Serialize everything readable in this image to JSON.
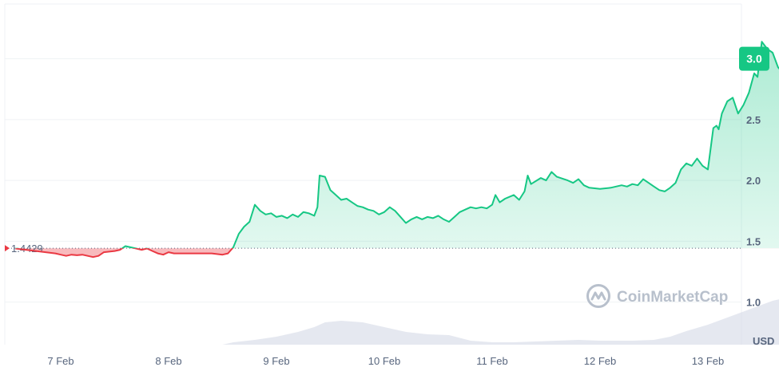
{
  "chart_data": {
    "type": "area",
    "title": "",
    "xlabel": "",
    "ylabel": "USD",
    "ylim": [
      0.65,
      3.45
    ],
    "baseline": {
      "value": 1.4429,
      "label": "1.4429"
    },
    "last_price": {
      "value": 3.0,
      "label": "3.0"
    },
    "y_ticks": [
      {
        "value": 1.0,
        "label": "1.0"
      },
      {
        "value": 1.5,
        "label": "1.5"
      },
      {
        "value": 2.0,
        "label": "2.0"
      },
      {
        "value": 2.5,
        "label": "2.5"
      },
      {
        "value": 3.0,
        "label": "3.0"
      }
    ],
    "x_ticks": [
      {
        "day": 0,
        "label": "7 Feb"
      },
      {
        "day": 1,
        "label": "8 Feb"
      },
      {
        "day": 2,
        "label": "9 Feb"
      },
      {
        "day": 3,
        "label": "10 Feb"
      },
      {
        "day": 4,
        "label": "11 Feb"
      },
      {
        "day": 5,
        "label": "12 Feb"
      },
      {
        "day": 6,
        "label": "13 Feb"
      }
    ],
    "series": [
      {
        "values": [
          [
            -0.42,
            1.44
          ],
          [
            -0.05,
            1.4
          ],
          [
            0.0,
            1.39
          ],
          [
            0.05,
            1.38
          ],
          [
            0.1,
            1.39
          ],
          [
            0.15,
            1.385
          ],
          [
            0.2,
            1.39
          ],
          [
            0.3,
            1.37
          ],
          [
            0.35,
            1.38
          ],
          [
            0.4,
            1.41
          ],
          [
            0.5,
            1.42
          ],
          [
            0.55,
            1.43
          ],
          [
            0.6,
            1.46
          ],
          [
            0.65,
            1.45
          ],
          [
            0.7,
            1.44
          ],
          [
            0.75,
            1.43
          ],
          [
            0.8,
            1.44
          ],
          [
            0.85,
            1.42
          ],
          [
            0.9,
            1.4
          ],
          [
            0.95,
            1.39
          ],
          [
            1.0,
            1.41
          ],
          [
            1.05,
            1.4
          ],
          [
            1.2,
            1.4
          ],
          [
            1.4,
            1.4
          ],
          [
            1.5,
            1.39
          ],
          [
            1.55,
            1.4
          ],
          [
            1.6,
            1.45
          ],
          [
            1.65,
            1.56
          ],
          [
            1.7,
            1.62
          ],
          [
            1.75,
            1.66
          ],
          [
            1.8,
            1.8
          ],
          [
            1.85,
            1.75
          ],
          [
            1.9,
            1.72
          ],
          [
            1.95,
            1.73
          ],
          [
            2.0,
            1.7
          ],
          [
            2.05,
            1.71
          ],
          [
            2.1,
            1.69
          ],
          [
            2.15,
            1.72
          ],
          [
            2.2,
            1.7
          ],
          [
            2.25,
            1.74
          ],
          [
            2.3,
            1.73
          ],
          [
            2.35,
            1.71
          ],
          [
            2.38,
            1.78
          ],
          [
            2.4,
            2.04
          ],
          [
            2.45,
            2.03
          ],
          [
            2.5,
            1.92
          ],
          [
            2.55,
            1.88
          ],
          [
            2.6,
            1.84
          ],
          [
            2.65,
            1.85
          ],
          [
            2.7,
            1.82
          ],
          [
            2.75,
            1.79
          ],
          [
            2.8,
            1.78
          ],
          [
            2.85,
            1.76
          ],
          [
            2.9,
            1.75
          ],
          [
            2.95,
            1.72
          ],
          [
            3.0,
            1.74
          ],
          [
            3.05,
            1.78
          ],
          [
            3.1,
            1.75
          ],
          [
            3.15,
            1.7
          ],
          [
            3.2,
            1.65
          ],
          [
            3.25,
            1.68
          ],
          [
            3.3,
            1.7
          ],
          [
            3.35,
            1.68
          ],
          [
            3.4,
            1.7
          ],
          [
            3.45,
            1.69
          ],
          [
            3.5,
            1.71
          ],
          [
            3.55,
            1.68
          ],
          [
            3.6,
            1.66
          ],
          [
            3.65,
            1.7
          ],
          [
            3.7,
            1.74
          ],
          [
            3.75,
            1.76
          ],
          [
            3.8,
            1.78
          ],
          [
            3.85,
            1.77
          ],
          [
            3.9,
            1.78
          ],
          [
            3.95,
            1.77
          ],
          [
            4.0,
            1.8
          ],
          [
            4.03,
            1.88
          ],
          [
            4.07,
            1.82
          ],
          [
            4.12,
            1.85
          ],
          [
            4.2,
            1.88
          ],
          [
            4.25,
            1.84
          ],
          [
            4.3,
            1.91
          ],
          [
            4.33,
            2.04
          ],
          [
            4.36,
            1.97
          ],
          [
            4.45,
            2.02
          ],
          [
            4.5,
            2.0
          ],
          [
            4.55,
            2.07
          ],
          [
            4.6,
            2.03
          ],
          [
            4.7,
            2.0
          ],
          [
            4.75,
            1.98
          ],
          [
            4.8,
            2.01
          ],
          [
            4.85,
            1.96
          ],
          [
            4.9,
            1.94
          ],
          [
            5.0,
            1.93
          ],
          [
            5.1,
            1.94
          ],
          [
            5.2,
            1.96
          ],
          [
            5.25,
            1.95
          ],
          [
            5.3,
            1.97
          ],
          [
            5.35,
            1.96
          ],
          [
            5.4,
            2.01
          ],
          [
            5.45,
            1.98
          ],
          [
            5.5,
            1.95
          ],
          [
            5.55,
            1.92
          ],
          [
            5.6,
            1.91
          ],
          [
            5.65,
            1.94
          ],
          [
            5.7,
            1.98
          ],
          [
            5.75,
            2.09
          ],
          [
            5.8,
            2.14
          ],
          [
            5.85,
            2.12
          ],
          [
            5.9,
            2.18
          ],
          [
            5.95,
            2.12
          ],
          [
            6.0,
            2.09
          ],
          [
            6.05,
            2.43
          ],
          [
            6.08,
            2.45
          ],
          [
            6.1,
            2.42
          ],
          [
            6.13,
            2.55
          ],
          [
            6.18,
            2.65
          ],
          [
            6.23,
            2.68
          ],
          [
            6.28,
            2.55
          ],
          [
            6.33,
            2.62
          ],
          [
            6.38,
            2.72
          ],
          [
            6.43,
            2.88
          ],
          [
            6.46,
            2.85
          ],
          [
            6.5,
            3.14
          ],
          [
            6.55,
            3.08
          ],
          [
            6.6,
            3.05
          ],
          [
            6.65,
            2.93
          ],
          [
            6.7,
            2.88
          ],
          [
            6.75,
            2.86
          ],
          [
            6.8,
            2.9
          ],
          [
            6.83,
            3.0
          ]
        ]
      }
    ],
    "volume": [
      [
        -0.42,
        0.0
      ],
      [
        1.5,
        0.0
      ],
      [
        1.6,
        0.03
      ],
      [
        1.8,
        0.06
      ],
      [
        2.0,
        0.1
      ],
      [
        2.2,
        0.16
      ],
      [
        2.35,
        0.22
      ],
      [
        2.45,
        0.28
      ],
      [
        2.6,
        0.3
      ],
      [
        2.8,
        0.28
      ],
      [
        3.0,
        0.22
      ],
      [
        3.2,
        0.16
      ],
      [
        3.4,
        0.13
      ],
      [
        3.6,
        0.12
      ],
      [
        3.8,
        0.05
      ],
      [
        4.0,
        0.03
      ],
      [
        4.2,
        0.03
      ],
      [
        4.4,
        0.04
      ],
      [
        4.6,
        0.05
      ],
      [
        4.8,
        0.06
      ],
      [
        5.0,
        0.05
      ],
      [
        5.3,
        0.05
      ],
      [
        5.5,
        0.06
      ],
      [
        5.65,
        0.1
      ],
      [
        5.8,
        0.17
      ],
      [
        6.0,
        0.25
      ],
      [
        6.2,
        0.35
      ],
      [
        6.4,
        0.45
      ],
      [
        6.6,
        0.55
      ],
      [
        6.83,
        0.62
      ]
    ],
    "colors": {
      "up_line": "#16c784",
      "down_line": "#ea3943",
      "up_fill": "#16c784",
      "down_fill": "#ea3943",
      "volume": "#cfd6e4",
      "baseline": "#58667e",
      "badge": "#16c784",
      "grid": "#eff2f5"
    },
    "grid": true,
    "legend": "none"
  },
  "watermark": {
    "text": "CoinMarketCap",
    "icon": "coinmarketcap-logo-icon"
  },
  "currency_label": "USD"
}
